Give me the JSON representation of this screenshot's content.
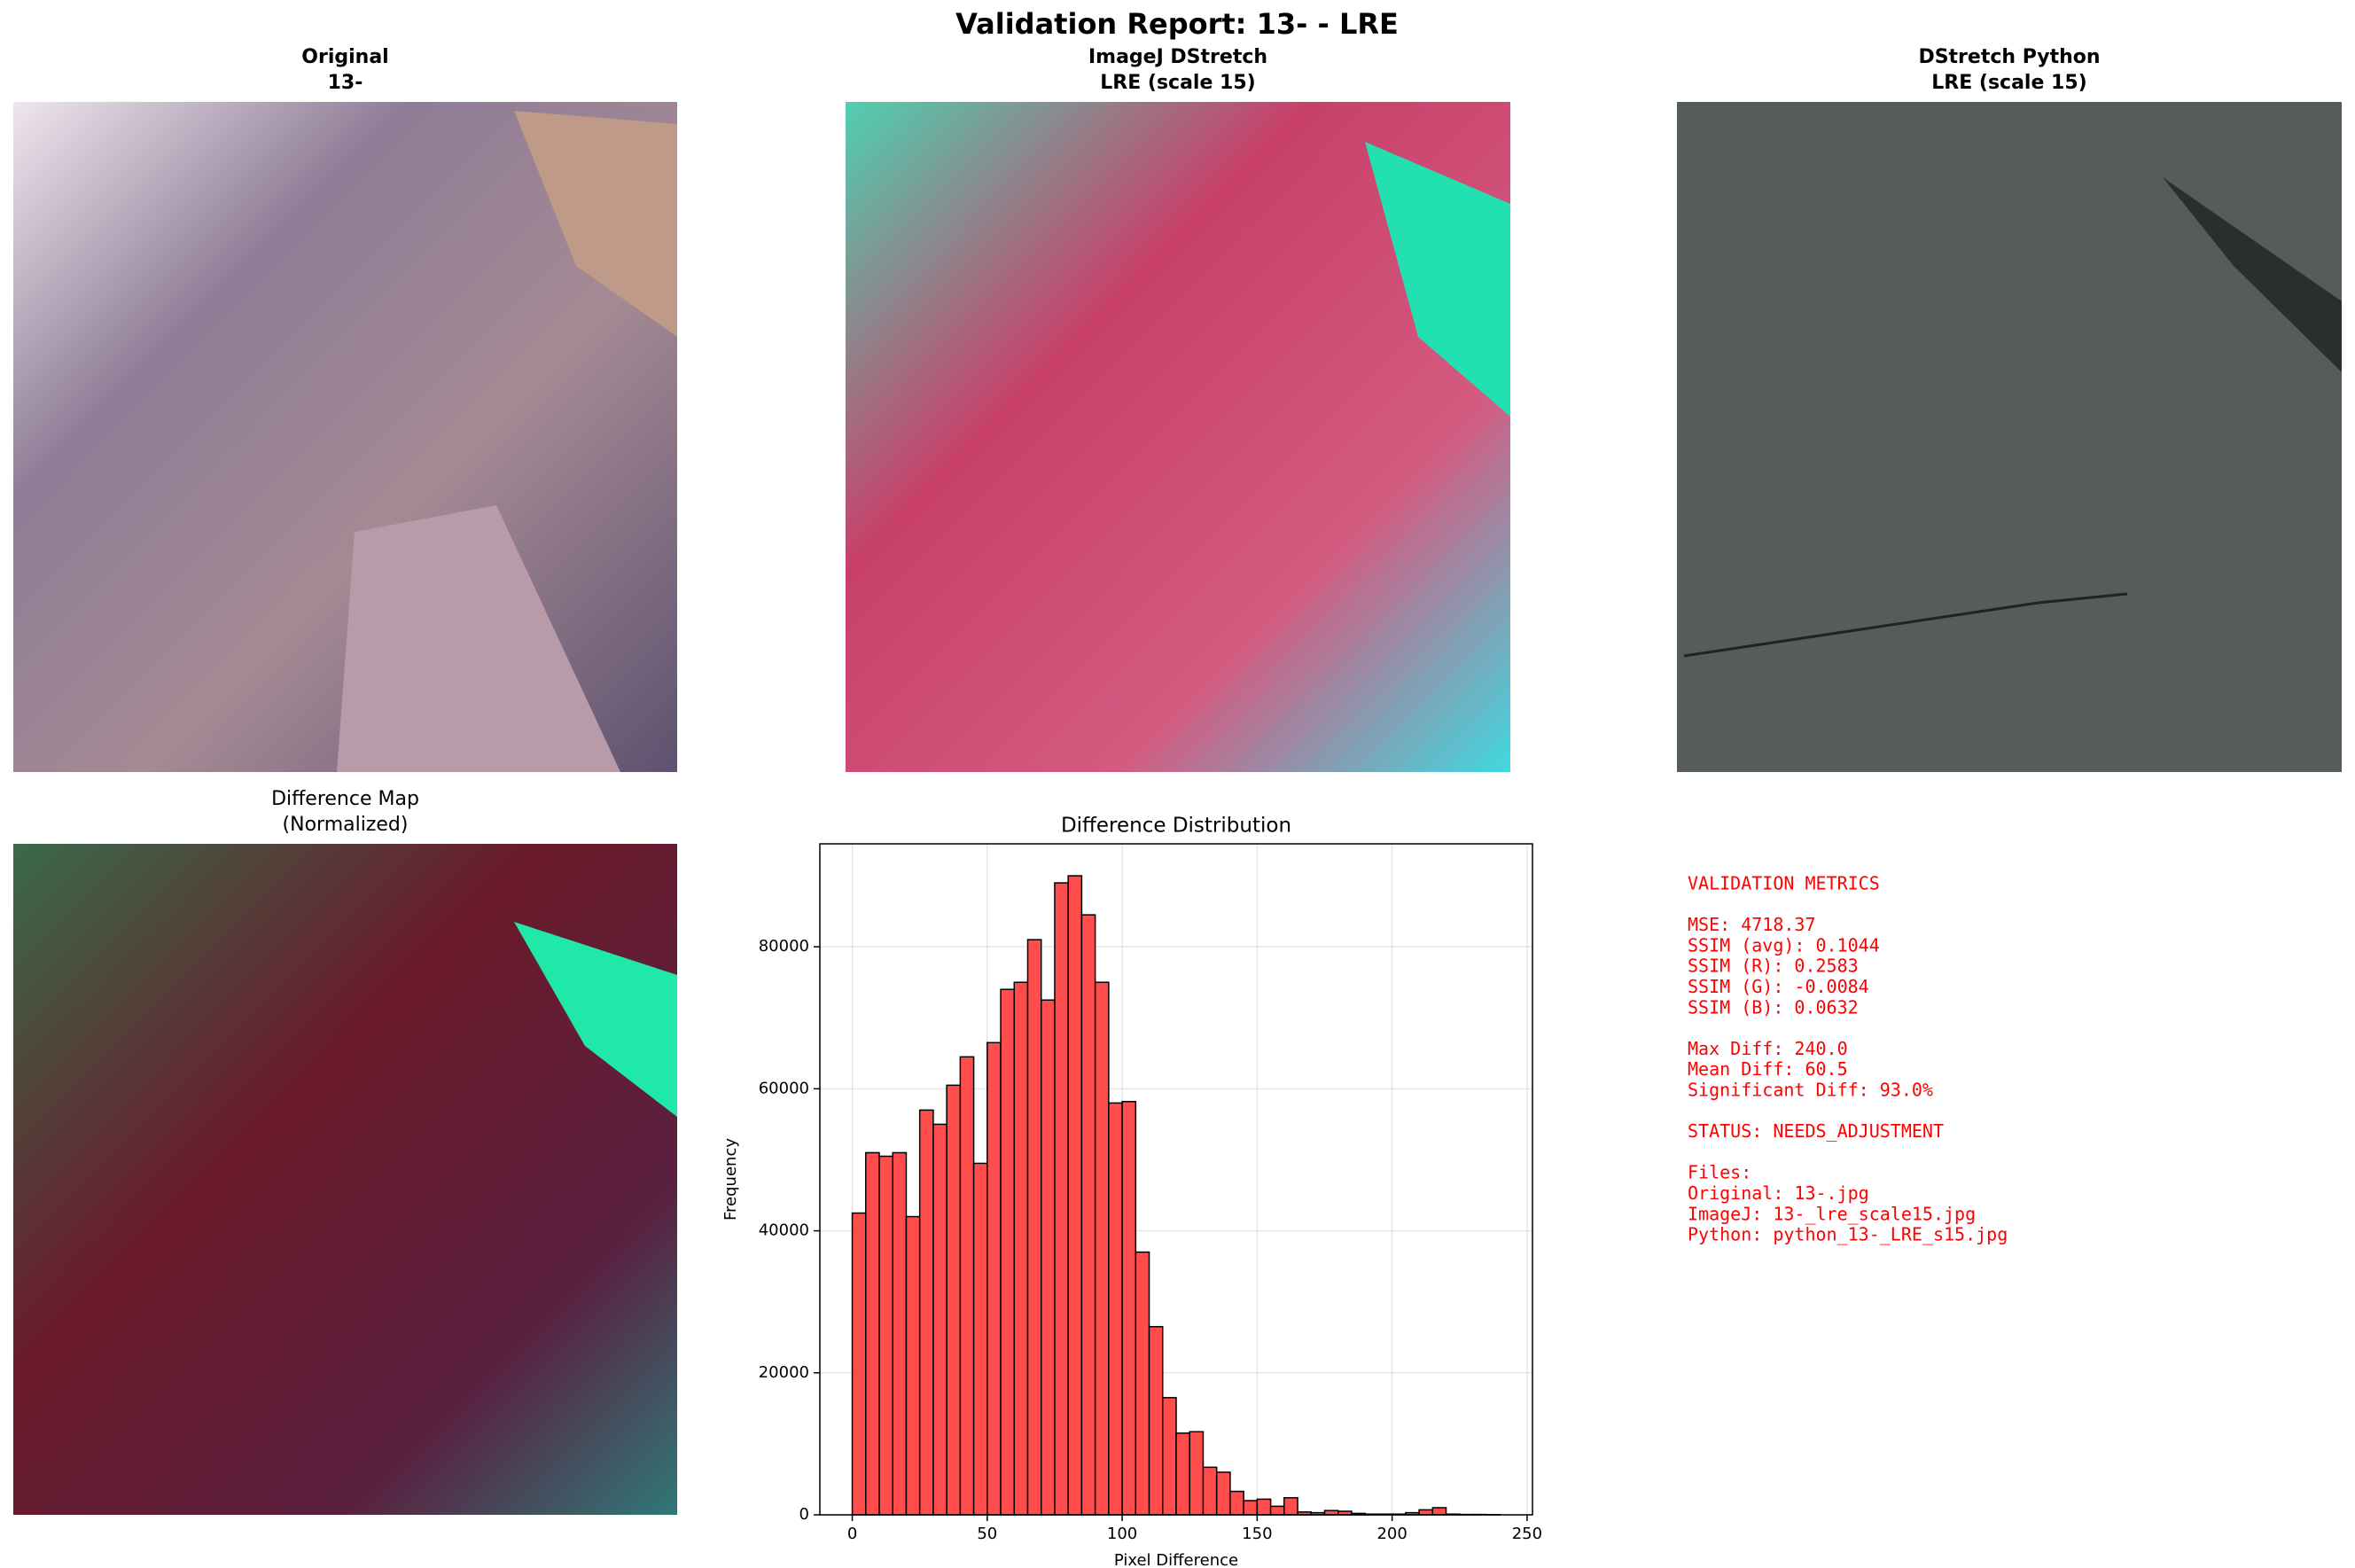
{
  "title": "Validation Report: 13- - LRE",
  "panels": [
    {
      "title": [
        "Original",
        "13-"
      ]
    },
    {
      "title": [
        "ImageJ DStretch",
        "LRE (scale 15)"
      ]
    },
    {
      "title": [
        "DStretch Python",
        "LRE (scale 15)"
      ]
    },
    {
      "title": [
        "Difference Map",
        "(Normalized)"
      ]
    }
  ],
  "chart_data": {
    "type": "histogram",
    "title": "Difference Distribution",
    "xlabel": "Pixel Difference",
    "ylabel": "Frequency",
    "bins": [
      0,
      5,
      10,
      15,
      20,
      25,
      30,
      35,
      40,
      45,
      50,
      55,
      60,
      65,
      70,
      75,
      80,
      85,
      90,
      95,
      100,
      105,
      110,
      115,
      120,
      125,
      130,
      135,
      140,
      145,
      150,
      155,
      160,
      165,
      170,
      175,
      180,
      185,
      190,
      195,
      200,
      205,
      210,
      215,
      220,
      225,
      230,
      235,
      240
    ],
    "values": [
      42500,
      51000,
      50500,
      51000,
      42000,
      57000,
      55000,
      60500,
      64500,
      49500,
      66500,
      74000,
      75000,
      81000,
      72500,
      89000,
      90000,
      84500,
      75000,
      58000,
      58200,
      37000,
      26500,
      16500,
      11500,
      11700,
      6700,
      6000,
      3300,
      2000,
      2200,
      1200,
      2400,
      400,
      300,
      600,
      500,
      200,
      100,
      100,
      100,
      300,
      700,
      1000,
      100,
      50,
      50,
      30
    ],
    "color": "#ff4d4d",
    "edgecolor": "#000000",
    "xlim": [
      -12,
      252
    ],
    "ylim": [
      0,
      94500
    ],
    "xticks": [
      0,
      50,
      100,
      150,
      200,
      250
    ],
    "yticks": [
      0,
      20000,
      40000,
      60000,
      80000
    ],
    "grid": true
  },
  "metrics": [
    [
      "VALIDATION METRICS"
    ],
    [
      "MSE: 4718.37",
      "SSIM (avg): 0.1044",
      "SSIM (R): 0.2583",
      "SSIM (G): -0.0084",
      "SSIM (B): 0.0632"
    ],
    [
      "Max Diff: 240.0",
      "Mean Diff: 60.5",
      "Significant Diff: 93.0%"
    ],
    [
      "STATUS: NEEDS_ADJUSTMENT"
    ],
    [
      "Files:",
      "Original: 13-.jpg",
      "ImageJ: 13-_lre_scale15.jpg",
      "Python: python_13-_LRE_s15.jpg"
    ]
  ]
}
